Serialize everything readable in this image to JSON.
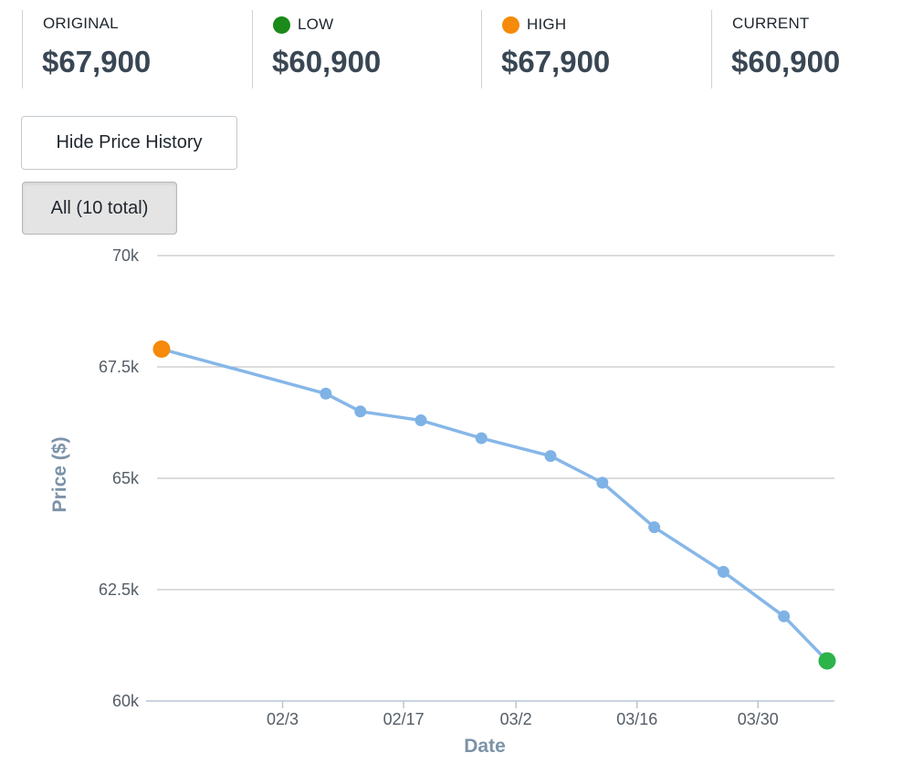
{
  "summary": {
    "original": {
      "label": "ORIGINAL",
      "value": "$67,900"
    },
    "low": {
      "label": "LOW",
      "value": "$60,900",
      "dot_color": "#1a8a1a"
    },
    "high": {
      "label": "HIGH",
      "value": "$67,900",
      "dot_color": "#f58a0b"
    },
    "current": {
      "label": "CURRENT",
      "value": "$60,900"
    }
  },
  "buttons": {
    "hide_history": "Hide Price History",
    "filter_all": "All (10 total)"
  },
  "chart_data": {
    "type": "line",
    "xlabel": "Date",
    "ylabel": "Price ($)",
    "ylim": [
      60000,
      70000
    ],
    "y_ticks": [
      60000,
      62500,
      65000,
      67500,
      70000
    ],
    "y_tick_labels": [
      "60k",
      "62.5k",
      "65k",
      "67.5k",
      "70k"
    ],
    "x_tick_labels": [
      "02/3",
      "02/17",
      "03/2",
      "03/16",
      "03/30"
    ],
    "x_tick_dates": [
      "2021-02-03",
      "2021-02-17",
      "2021-03-02",
      "2021-03-16",
      "2021-03-30"
    ],
    "series": [
      {
        "x": [
          "2021-01-20",
          "2021-02-08",
          "2021-02-12",
          "2021-02-19",
          "2021-02-26",
          "2021-03-06",
          "2021-03-12",
          "2021-03-18",
          "2021-03-26",
          "2021-04-02",
          "2021-04-07"
        ],
        "values": [
          67900,
          66900,
          66500,
          66300,
          65900,
          65500,
          64900,
          63900,
          62900,
          61900,
          60900
        ]
      }
    ],
    "grid": true,
    "line_color": "#86b7e8",
    "marker_color": "#7fb2e5",
    "high_color": "#f58a0b",
    "low_color": "#2cb34a"
  }
}
